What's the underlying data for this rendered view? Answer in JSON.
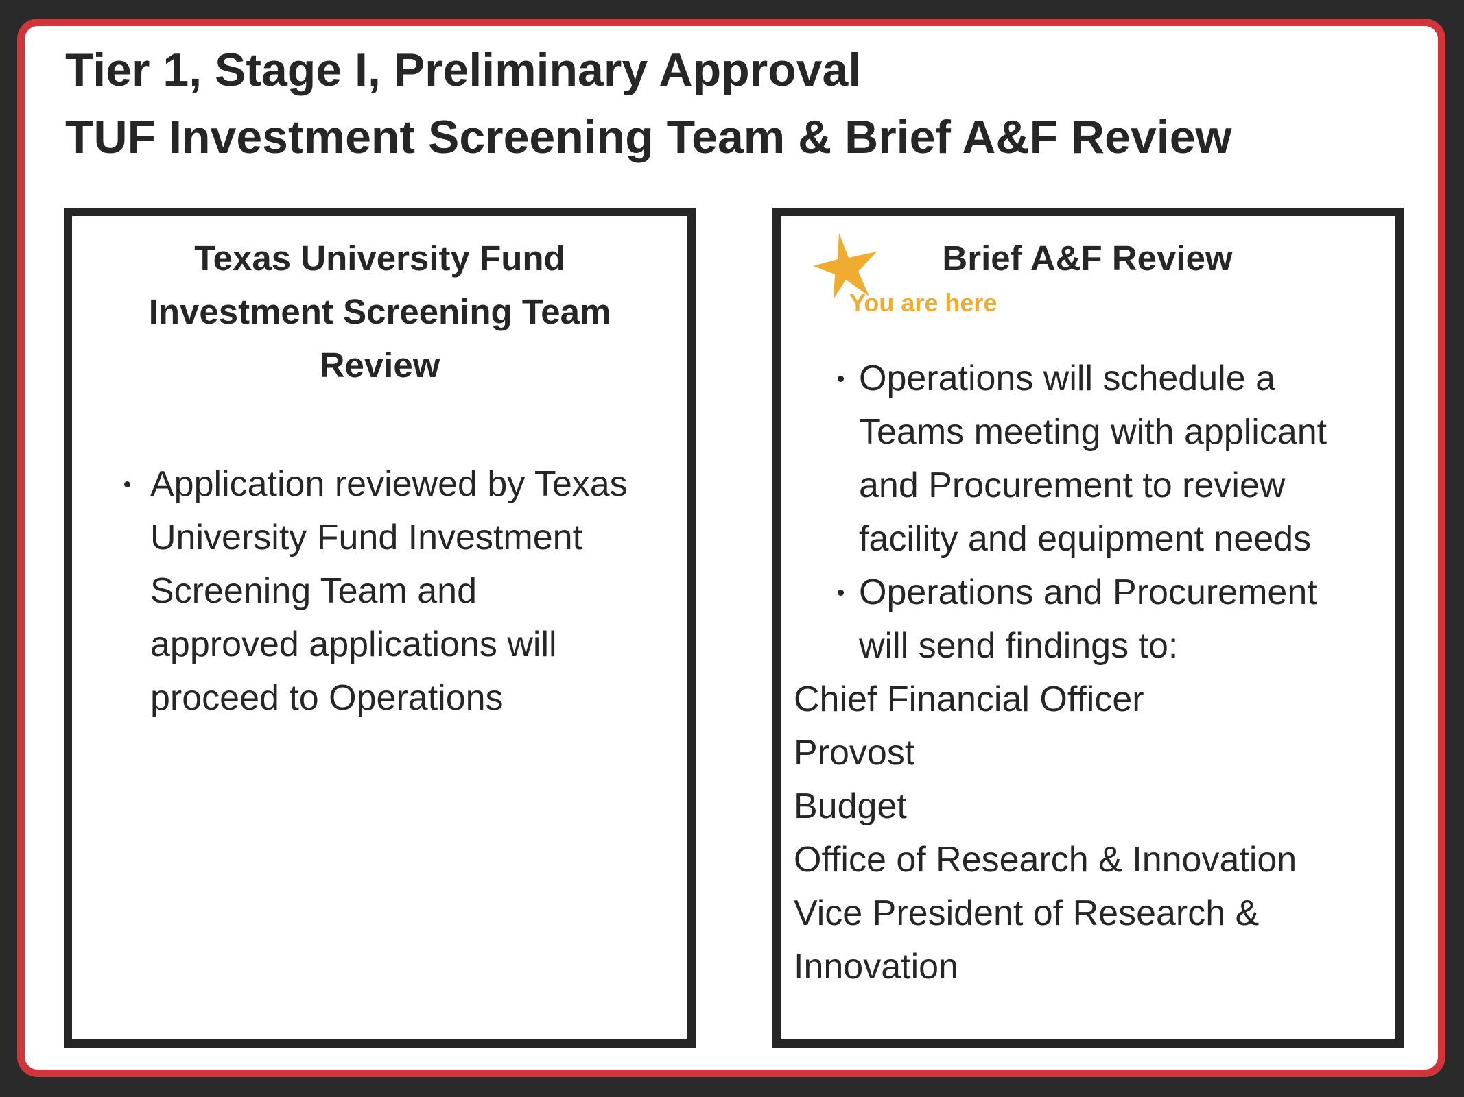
{
  "title": {
    "line1": "Tier 1, Stage I, Preliminary Approval",
    "line2": "TUF Investment Screening Team & Brief A&F Review"
  },
  "left_box": {
    "heading": [
      "Texas University Fund",
      "Investment Screening Team",
      "Review"
    ],
    "bullets": [
      [
        "Application reviewed by Texas",
        "University Fund Investment",
        "Screening Team and",
        "approved applications will",
        "proceed to Operations"
      ]
    ]
  },
  "right_box": {
    "heading": "Brief A&F Review",
    "marker": {
      "icon": "star-icon",
      "label": "You are here",
      "color": "#f0ac30"
    },
    "bullets": [
      [
        "Operations will schedule a",
        "Teams meeting with applicant",
        "and Procurement to review",
        "facility and equipment needs"
      ],
      [
        "Operations and Procurement",
        "will send findings to:"
      ]
    ],
    "recipients": [
      "Chief Financial Officer",
      "Provost",
      "Budget",
      "Office of Research & Innovation",
      "Vice President of Research &",
      "Innovation"
    ]
  },
  "colors": {
    "border": "#d2343c",
    "background": "#2a2a2a",
    "text": "#262626",
    "accent": "#f0ac30"
  }
}
